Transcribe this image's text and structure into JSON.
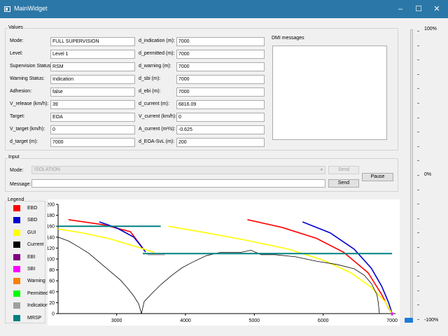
{
  "window": {
    "title": "MainWidget",
    "minimize": "–",
    "maximize": "☐",
    "close": "✕"
  },
  "values": {
    "group_title": "Values",
    "left": [
      {
        "label": "Mode:",
        "value": "FULL SUPERVISION"
      },
      {
        "label": "Level:",
        "value": "Level 1"
      },
      {
        "label": "Supervision Status:",
        "value": "RSM"
      },
      {
        "label": "Warning Status:",
        "value": "Indication"
      },
      {
        "label": "Adhesion:",
        "value": "false"
      },
      {
        "label": "V_release (km/h):",
        "value": "39"
      },
      {
        "label": "Target:",
        "value": "EOA"
      },
      {
        "label": "V_target (km/h):",
        "value": "0"
      },
      {
        "label": "d_target (m):",
        "value": "7000"
      }
    ],
    "right": [
      {
        "label": "d_indication (m):",
        "value": "7000"
      },
      {
        "label": "d_permitted (m):",
        "value": "7000"
      },
      {
        "label": "d_warning (m):",
        "value": "7000"
      },
      {
        "label": "d_sbi (m):",
        "value": "7000"
      },
      {
        "label": "d_ebi (m):",
        "value": "7000"
      },
      {
        "label": "d_current (m):",
        "value": "6816.09"
      },
      {
        "label": "V_current (km/h):",
        "value": "0"
      },
      {
        "label": "A_current (m²/s):",
        "value": "-0.625"
      },
      {
        "label": "d_EOA-SvL (m):",
        "value": "200"
      }
    ],
    "dmi_title": "DMI messages"
  },
  "input": {
    "group_title": "Input",
    "mode_label": "Mode:",
    "mode_value": "ISOLATION",
    "send1": "Send",
    "message_label": "Message:",
    "message_value": "",
    "send2": "Send",
    "pause": "Pause"
  },
  "legend": {
    "title": "Legend",
    "items": [
      {
        "name": "EBD",
        "color": "#ff0000"
      },
      {
        "name": "SBD",
        "color": "#0000cc"
      },
      {
        "name": "GUI",
        "color": "#ffff00"
      },
      {
        "name": "Current",
        "color": "#000000"
      },
      {
        "name": "EBI",
        "color": "#800080"
      },
      {
        "name": "SBI",
        "color": "#ff00ff"
      },
      {
        "name": "Warning",
        "color": "#ff8000"
      },
      {
        "name": "Permitted",
        "color": "#00ff00"
      },
      {
        "name": "Indication",
        "color": "#a0a0a0"
      },
      {
        "name": "MRSP",
        "color": "#008080"
      }
    ]
  },
  "slider": {
    "top_label": "100%",
    "mid_label": "0%",
    "bottom_label": "-100%",
    "value_fraction": -1.0
  },
  "chart_data": {
    "type": "line",
    "xlim": [
      2150,
      7050
    ],
    "ylim": [
      0,
      200
    ],
    "xticks": [
      "3000",
      "4000",
      "5000",
      "6000",
      "7000"
    ],
    "yticks": [
      "0",
      "20",
      "40",
      "60",
      "80",
      "100",
      "120",
      "140",
      "160",
      "180",
      "200"
    ],
    "series": [
      {
        "name": "EBD",
        "color": "#ff0000",
        "segments": [
          [
            [
              2300,
              172
            ],
            [
              2800,
              163
            ],
            [
              3200,
              150
            ],
            [
              3380,
              120
            ]
          ],
          [
            [
              4900,
              172
            ],
            [
              5400,
              158
            ],
            [
              5900,
              138
            ],
            [
              6300,
              112
            ],
            [
              6650,
              75
            ],
            [
              6850,
              35
            ],
            [
              6950,
              10
            ],
            [
              7000,
              0
            ]
          ]
        ]
      },
      {
        "name": "SBD",
        "color": "#0000cc",
        "segments": [
          [
            [
              2750,
              168
            ],
            [
              3000,
              157
            ],
            [
              3250,
              140
            ],
            [
              3420,
              113
            ]
          ],
          [
            [
              5700,
              168
            ],
            [
              6100,
              148
            ],
            [
              6450,
              118
            ],
            [
              6700,
              83
            ],
            [
              6850,
              50
            ],
            [
              6950,
              20
            ],
            [
              7000,
              0
            ]
          ]
        ]
      },
      {
        "name": "GUI",
        "color": "#ffff00",
        "segments": [
          [
            [
              2150,
              155
            ],
            [
              2500,
              148
            ],
            [
              2900,
              137
            ],
            [
              3300,
              122
            ],
            [
              3550,
              112
            ]
          ],
          [
            [
              3750,
              160
            ],
            [
              4300,
              148
            ],
            [
              4900,
              134
            ],
            [
              5500,
              118
            ],
            [
              6000,
              98
            ],
            [
              6400,
              75
            ],
            [
              6700,
              48
            ],
            [
              6900,
              22
            ],
            [
              7000,
              0
            ]
          ]
        ]
      },
      {
        "name": "Current",
        "color": "#000000",
        "segments": [
          [
            [
              2150,
              140
            ],
            [
              2300,
              133
            ],
            [
              2450,
              122
            ],
            [
              2600,
              110
            ],
            [
              2750,
              94
            ],
            [
              2900,
              78
            ],
            [
              3050,
              62
            ],
            [
              3150,
              48
            ],
            [
              3250,
              32
            ],
            [
              3320,
              18
            ],
            [
              3360,
              0
            ]
          ],
          [
            [
              3360,
              0
            ],
            [
              3400,
              22
            ],
            [
              3520,
              38
            ],
            [
              3650,
              54
            ],
            [
              3800,
              70
            ],
            [
              3950,
              84
            ],
            [
              4100,
              94
            ],
            [
              4300,
              106
            ],
            [
              4500,
              112
            ],
            [
              4800,
              112
            ],
            [
              4950,
              116
            ],
            [
              5100,
              108
            ],
            [
              5300,
              108
            ],
            [
              5600,
              104
            ],
            [
              5900,
              96
            ],
            [
              6200,
              90
            ],
            [
              6450,
              82
            ],
            [
              6600,
              70
            ],
            [
              6700,
              55
            ],
            [
              6780,
              35
            ],
            [
              6800,
              20
            ],
            [
              6816,
              0
            ]
          ]
        ]
      },
      {
        "name": "MRSP",
        "color": "#008080",
        "segments": [
          [
            [
              2150,
              160
            ],
            [
              2650,
              160
            ],
            [
              2650,
              160
            ],
            [
              3640,
              160
            ]
          ],
          [
            [
              3380,
              110
            ],
            [
              7000,
              110
            ]
          ]
        ]
      },
      {
        "name": "Indication",
        "color": "#a0a0a0",
        "segments": [
          [
            [
              3450,
              108
            ],
            [
              3700,
              108
            ]
          ]
        ]
      }
    ],
    "dot": {
      "name": "SBI",
      "color": "#ff00ff",
      "x": 7000,
      "y": 0
    }
  }
}
